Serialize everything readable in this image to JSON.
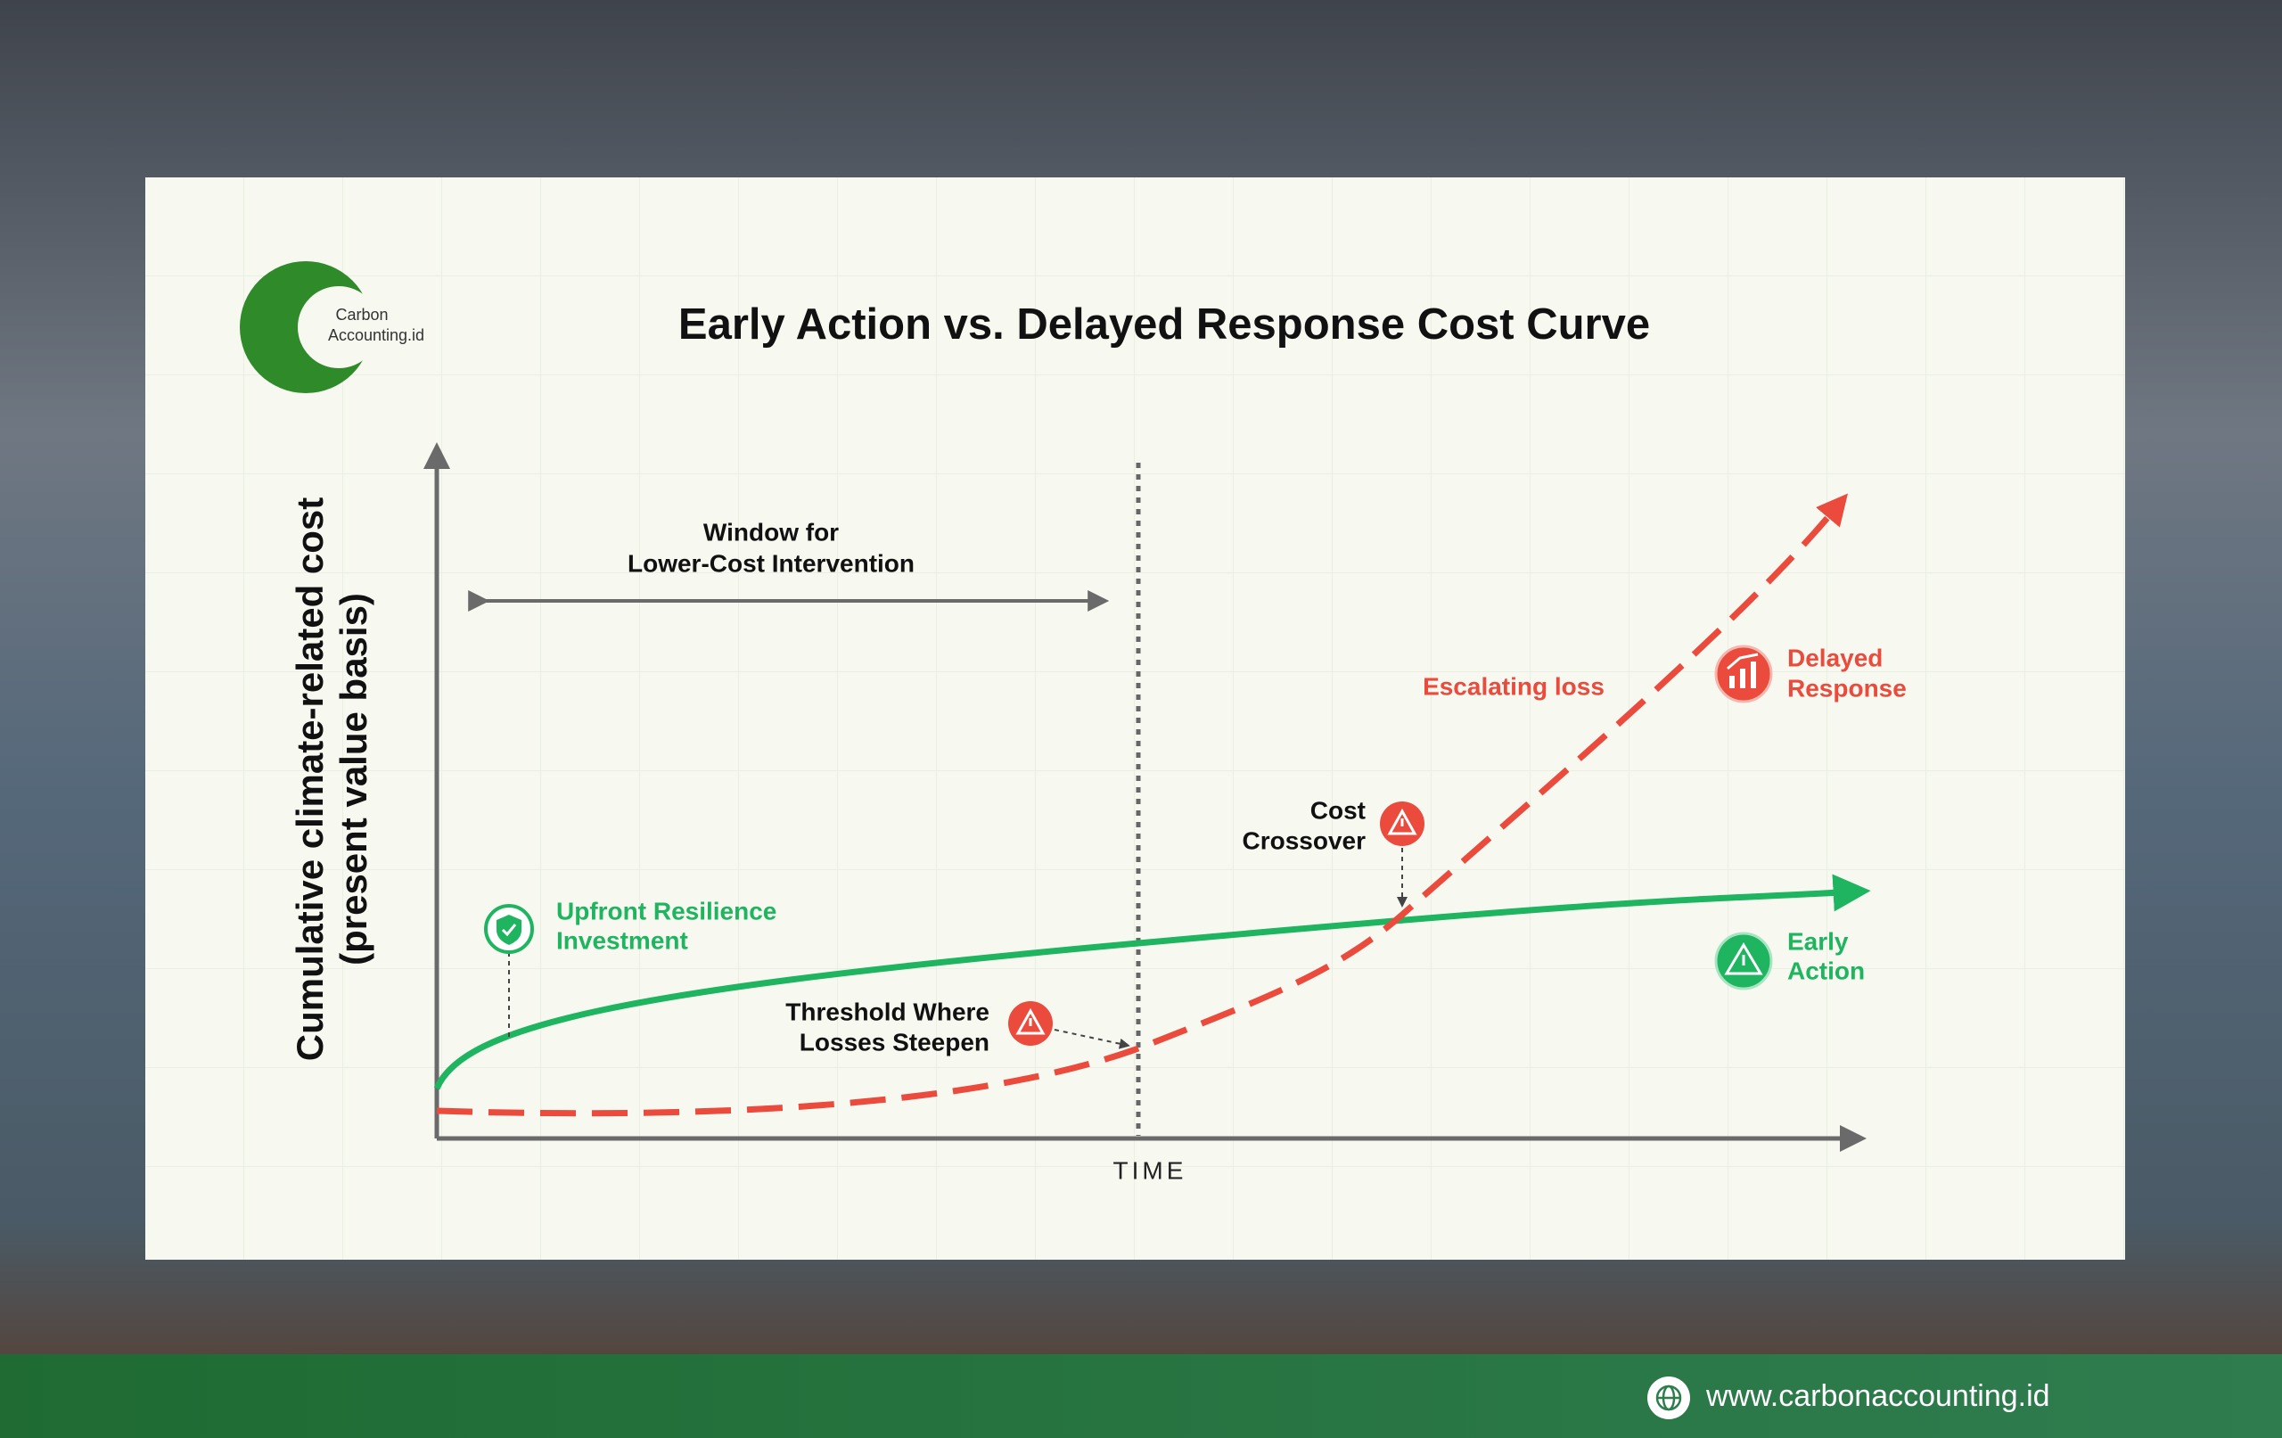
{
  "header": {
    "logo": [
      "Carbon",
      "Accounting.id"
    ],
    "title": "Early Action vs. Delayed Response Cost Curve"
  },
  "diagram": {
    "y_axis_label": [
      "Cumulative climate-related cost",
      "(present value basis)"
    ],
    "x_axis_label": "TIME",
    "window_label": [
      "Window for",
      "Lower-Cost Intervention"
    ],
    "annotations": {
      "upfront": [
        "Upfront Resilience",
        "Investment"
      ],
      "threshold": [
        "Threshold Where",
        "Losses Steepen"
      ],
      "crossover": [
        "Cost",
        "Crossover"
      ],
      "escalating": "Escalating loss",
      "delayed": [
        "Delayed",
        "Response"
      ],
      "early": [
        "Early",
        "Action"
      ]
    }
  },
  "footer": {
    "url": "www.carbonaccounting.id"
  }
}
